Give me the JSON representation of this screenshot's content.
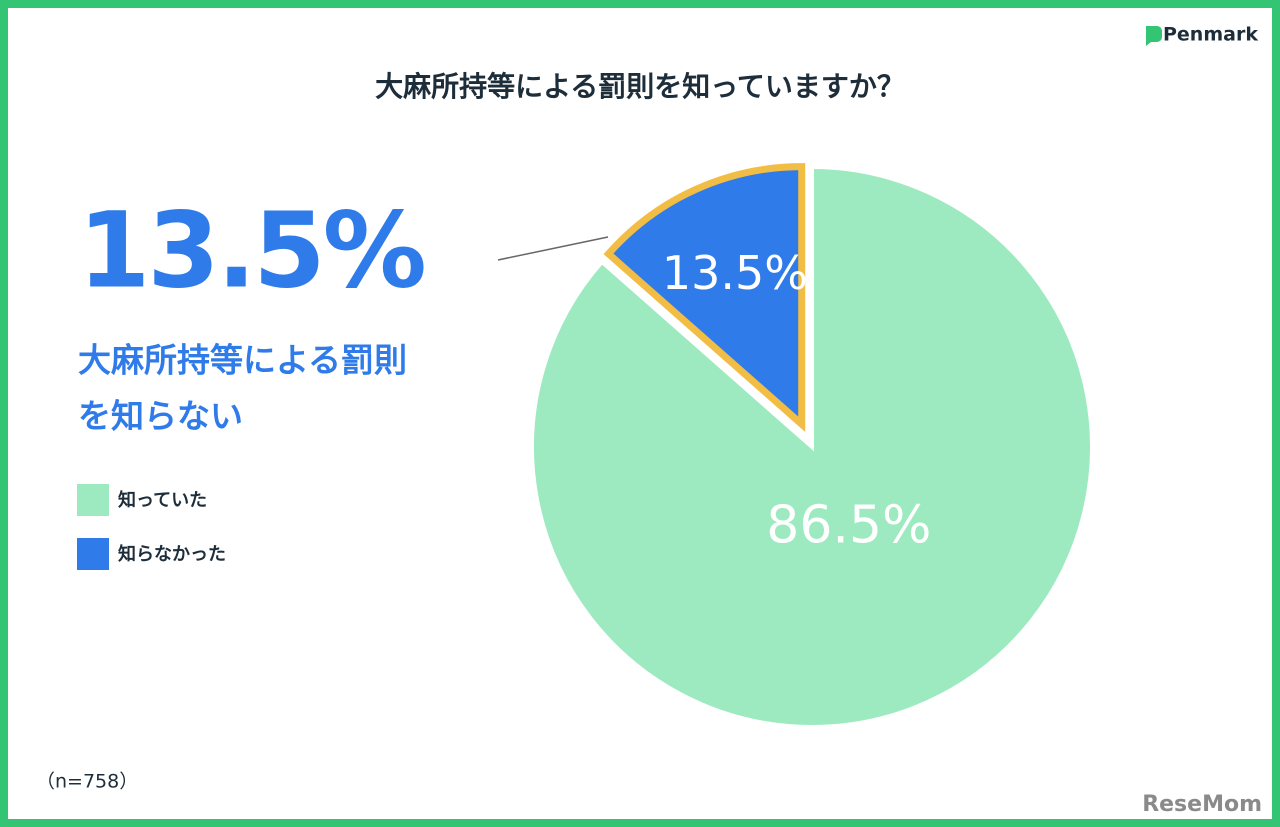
{
  "chart_data": {
    "type": "pie",
    "title": "大麻所持等による罰則を知っていますか？",
    "categories": [
      "知っていた",
      "知らなかった"
    ],
    "values": [
      86.5,
      13.5
    ],
    "value_labels": [
      "86.5%",
      "13.5%"
    ],
    "colors": [
      "#9eeac0",
      "#2f7be9"
    ],
    "explode": [
      false,
      true
    ],
    "highlight_color": "#f2bd45",
    "callout": {
      "value": "13.5%",
      "lines": [
        "大麻所持等による罰則",
        "を知らない"
      ]
    },
    "note": "（n=758）"
  },
  "brand": "Penmark",
  "watermark": "ReseMom"
}
